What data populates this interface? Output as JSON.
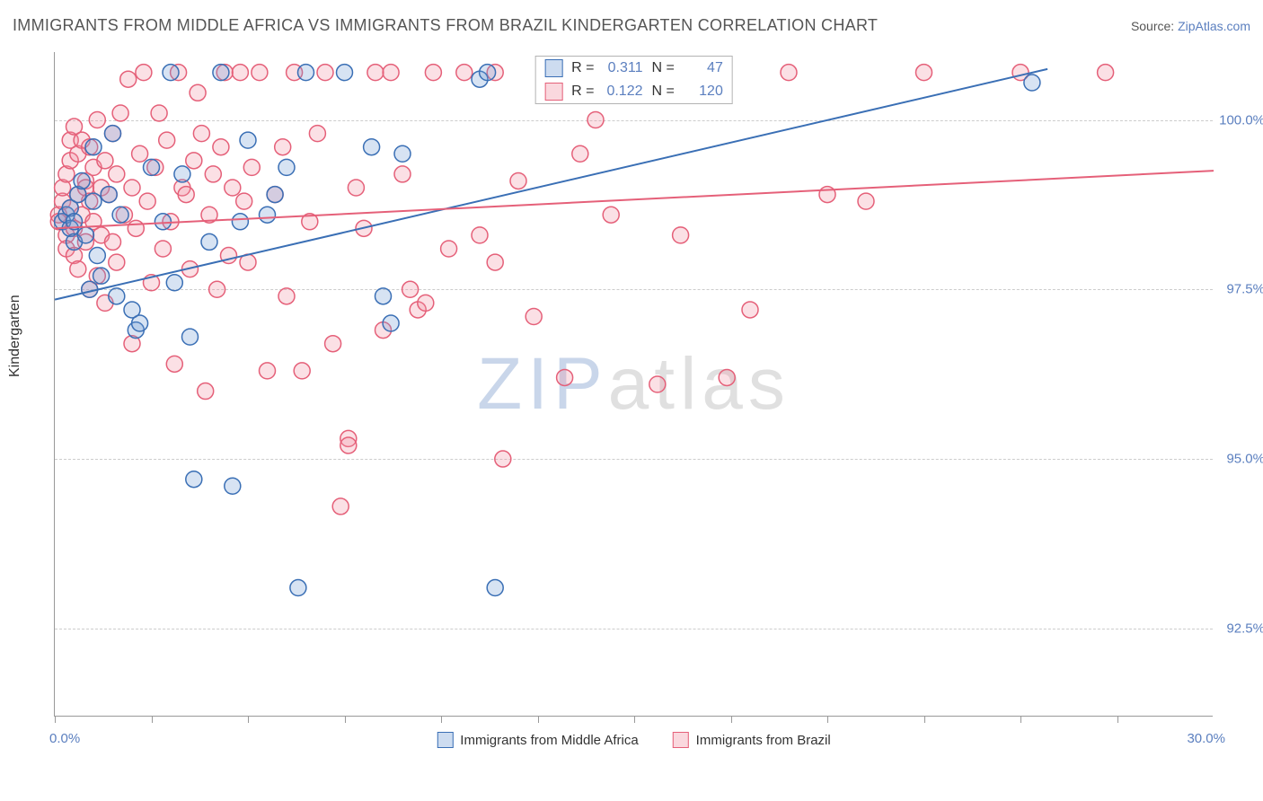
{
  "header": {
    "title": "IMMIGRANTS FROM MIDDLE AFRICA VS IMMIGRANTS FROM BRAZIL KINDERGARTEN CORRELATION CHART",
    "source_prefix": "Source: ",
    "source_link": "ZipAtlas.com"
  },
  "chart": {
    "type": "scatter",
    "ylabel": "Kindergarten",
    "xlim": [
      0,
      30
    ],
    "ylim": [
      91.2,
      101.0
    ],
    "x_tick_positions": [
      0,
      2.5,
      5,
      7.5,
      10,
      12.5,
      15,
      17.5,
      20,
      22.5,
      25,
      27.5
    ],
    "x_tick_labels_shown": {
      "0": "0.0%",
      "30": "30.0%"
    },
    "y_ticks": [
      92.5,
      95.0,
      97.5,
      100.0
    ],
    "y_tick_labels": [
      "92.5%",
      "95.0%",
      "97.5%",
      "100.0%"
    ],
    "grid_color": "#cccccc",
    "axis_color": "#999999",
    "background_color": "#ffffff",
    "marker_radius": 9,
    "marker_stroke_width": 1.5,
    "marker_fill_opacity": 0.28,
    "trend_line_width": 2,
    "series": {
      "a": {
        "label": "Immigrants from Middle Africa",
        "fill": "#6f9ad3",
        "stroke": "#3a6fb5",
        "R": "0.311",
        "N": "47",
        "trend": {
          "x1": 0,
          "y1": 97.35,
          "x2": 25.7,
          "y2": 100.75
        },
        "points": [
          [
            0.2,
            98.5
          ],
          [
            0.3,
            98.6
          ],
          [
            0.4,
            98.4
          ],
          [
            0.4,
            98.7
          ],
          [
            0.5,
            98.2
          ],
          [
            0.5,
            98.5
          ],
          [
            0.6,
            98.9
          ],
          [
            0.7,
            99.1
          ],
          [
            0.8,
            98.3
          ],
          [
            0.9,
            97.5
          ],
          [
            1.0,
            98.8
          ],
          [
            1.0,
            99.6
          ],
          [
            1.1,
            98.0
          ],
          [
            1.2,
            97.7
          ],
          [
            1.4,
            98.9
          ],
          [
            1.5,
            99.8
          ],
          [
            1.6,
            97.4
          ],
          [
            1.7,
            98.6
          ],
          [
            2.0,
            97.2
          ],
          [
            2.1,
            96.9
          ],
          [
            2.2,
            97.0
          ],
          [
            2.5,
            99.3
          ],
          [
            2.8,
            98.5
          ],
          [
            3.0,
            100.7
          ],
          [
            3.1,
            97.6
          ],
          [
            3.3,
            99.2
          ],
          [
            3.5,
            96.8
          ],
          [
            3.6,
            94.7
          ],
          [
            4.0,
            98.2
          ],
          [
            4.3,
            100.7
          ],
          [
            4.6,
            94.6
          ],
          [
            4.8,
            98.5
          ],
          [
            5.0,
            99.7
          ],
          [
            5.5,
            98.6
          ],
          [
            5.7,
            98.9
          ],
          [
            6.0,
            99.3
          ],
          [
            6.3,
            93.1
          ],
          [
            6.5,
            100.7
          ],
          [
            7.5,
            100.7
          ],
          [
            8.2,
            99.6
          ],
          [
            8.5,
            97.4
          ],
          [
            8.7,
            97.0
          ],
          [
            9.0,
            99.5
          ],
          [
            11.0,
            100.6
          ],
          [
            11.2,
            100.7
          ],
          [
            11.4,
            93.1
          ],
          [
            25.3,
            100.55
          ]
        ]
      },
      "b": {
        "label": "Immigrants from Brazil",
        "fill": "#f08ea0",
        "stroke": "#e56079",
        "R": "0.122",
        "N": "120",
        "trend": {
          "x1": 0,
          "y1": 98.4,
          "x2": 30,
          "y2": 99.25
        },
        "points": [
          [
            0.1,
            98.6
          ],
          [
            0.1,
            98.5
          ],
          [
            0.2,
            98.8
          ],
          [
            0.2,
            99.0
          ],
          [
            0.3,
            98.3
          ],
          [
            0.3,
            99.2
          ],
          [
            0.3,
            98.1
          ],
          [
            0.4,
            98.7
          ],
          [
            0.4,
            99.4
          ],
          [
            0.4,
            99.7
          ],
          [
            0.5,
            98.4
          ],
          [
            0.5,
            98.0
          ],
          [
            0.5,
            99.9
          ],
          [
            0.6,
            98.9
          ],
          [
            0.6,
            99.5
          ],
          [
            0.6,
            97.8
          ],
          [
            0.7,
            99.7
          ],
          [
            0.7,
            98.6
          ],
          [
            0.8,
            99.1
          ],
          [
            0.8,
            98.2
          ],
          [
            0.8,
            99.0
          ],
          [
            0.9,
            98.8
          ],
          [
            0.9,
            99.6
          ],
          [
            0.9,
            97.5
          ],
          [
            1.0,
            99.3
          ],
          [
            1.0,
            98.5
          ],
          [
            1.1,
            100.0
          ],
          [
            1.1,
            97.7
          ],
          [
            1.2,
            99.0
          ],
          [
            1.2,
            98.3
          ],
          [
            1.3,
            99.4
          ],
          [
            1.3,
            97.3
          ],
          [
            1.4,
            98.9
          ],
          [
            1.5,
            99.8
          ],
          [
            1.5,
            98.2
          ],
          [
            1.6,
            97.9
          ],
          [
            1.6,
            99.2
          ],
          [
            1.7,
            100.1
          ],
          [
            1.8,
            98.6
          ],
          [
            1.9,
            100.6
          ],
          [
            2.0,
            96.7
          ],
          [
            2.0,
            99.0
          ],
          [
            2.1,
            98.4
          ],
          [
            2.2,
            99.5
          ],
          [
            2.3,
            100.7
          ],
          [
            2.4,
            98.8
          ],
          [
            2.5,
            97.6
          ],
          [
            2.6,
            99.3
          ],
          [
            2.7,
            100.1
          ],
          [
            2.8,
            98.1
          ],
          [
            2.9,
            99.7
          ],
          [
            3.0,
            98.5
          ],
          [
            3.1,
            96.4
          ],
          [
            3.2,
            100.7
          ],
          [
            3.3,
            99.0
          ],
          [
            3.4,
            98.9
          ],
          [
            3.5,
            97.8
          ],
          [
            3.6,
            99.4
          ],
          [
            3.7,
            100.4
          ],
          [
            3.8,
            99.8
          ],
          [
            3.9,
            96.0
          ],
          [
            4.0,
            98.6
          ],
          [
            4.1,
            99.2
          ],
          [
            4.2,
            97.5
          ],
          [
            4.3,
            99.6
          ],
          [
            4.4,
            100.7
          ],
          [
            4.5,
            98.0
          ],
          [
            4.6,
            99.0
          ],
          [
            4.8,
            100.7
          ],
          [
            4.9,
            98.8
          ],
          [
            5.0,
            97.9
          ],
          [
            5.1,
            99.3
          ],
          [
            5.3,
            100.7
          ],
          [
            5.5,
            96.3
          ],
          [
            5.7,
            98.9
          ],
          [
            5.9,
            99.6
          ],
          [
            6.0,
            97.4
          ],
          [
            6.2,
            100.7
          ],
          [
            6.4,
            96.3
          ],
          [
            6.6,
            98.5
          ],
          [
            6.8,
            99.8
          ],
          [
            7.0,
            100.7
          ],
          [
            7.2,
            96.7
          ],
          [
            7.4,
            94.3
          ],
          [
            7.6,
            95.3
          ],
          [
            7.6,
            95.2
          ],
          [
            7.8,
            99.0
          ],
          [
            8.0,
            98.4
          ],
          [
            8.3,
            100.7
          ],
          [
            8.5,
            96.9
          ],
          [
            8.7,
            100.7
          ],
          [
            9.0,
            99.2
          ],
          [
            9.2,
            97.5
          ],
          [
            9.4,
            97.2
          ],
          [
            9.6,
            97.3
          ],
          [
            9.8,
            100.7
          ],
          [
            10.2,
            98.1
          ],
          [
            10.6,
            100.7
          ],
          [
            11.0,
            98.3
          ],
          [
            11.4,
            100.7
          ],
          [
            11.4,
            97.9
          ],
          [
            11.6,
            95.0
          ],
          [
            12.0,
            99.1
          ],
          [
            12.4,
            97.1
          ],
          [
            12.8,
            100.7
          ],
          [
            13.2,
            96.2
          ],
          [
            13.6,
            99.5
          ],
          [
            14.0,
            100.0
          ],
          [
            14.4,
            98.6
          ],
          [
            15.0,
            100.7
          ],
          [
            15.6,
            96.1
          ],
          [
            16.2,
            98.3
          ],
          [
            16.8,
            100.7
          ],
          [
            17.4,
            96.2
          ],
          [
            18.0,
            97.2
          ],
          [
            19.0,
            100.7
          ],
          [
            20.0,
            98.9
          ],
          [
            21.0,
            98.8
          ],
          [
            22.5,
            100.7
          ],
          [
            25.0,
            100.7
          ],
          [
            27.2,
            100.7
          ]
        ]
      }
    }
  },
  "watermark": {
    "zip": "ZIP",
    "atlas": "atlas"
  }
}
